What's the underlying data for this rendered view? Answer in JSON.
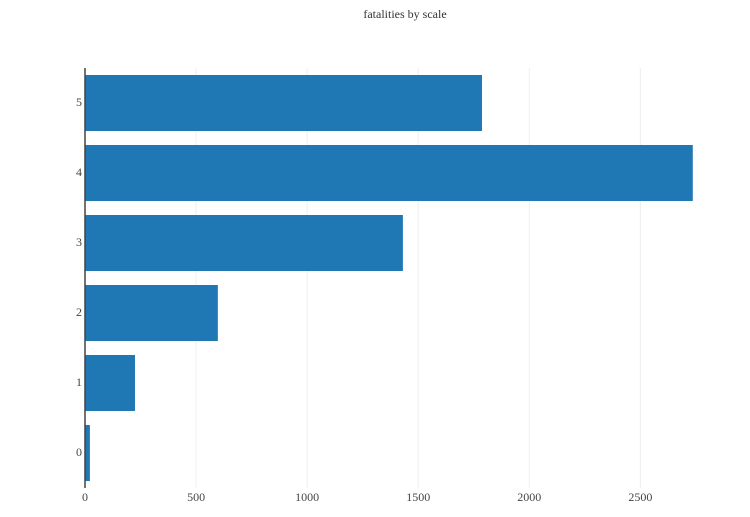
{
  "chart_data": {
    "type": "bar",
    "orientation": "horizontal",
    "title": "fatalities by scale",
    "categories": [
      "0",
      "1",
      "2",
      "3",
      "4",
      "5"
    ],
    "values": [
      22,
      225,
      598,
      1431,
      2736,
      1787
    ],
    "color": "#1f77b4",
    "xlim": [
      0,
      2800
    ],
    "xticks": [
      0,
      500,
      1000,
      1500,
      2000,
      2500
    ],
    "grid": true
  }
}
